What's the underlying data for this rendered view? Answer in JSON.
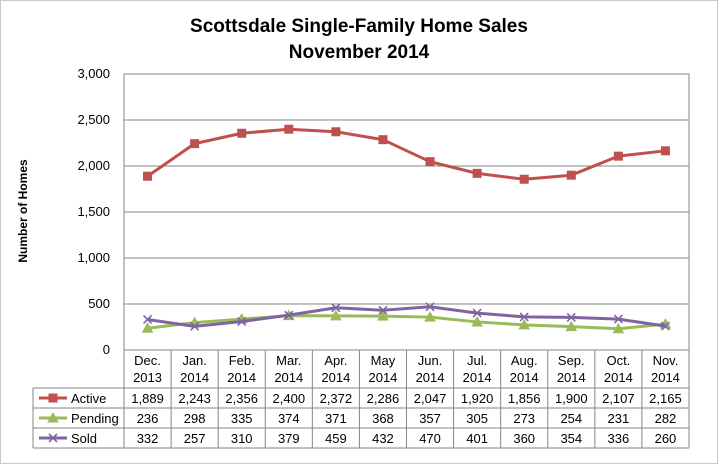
{
  "chart_data": {
    "type": "line",
    "title": "Scottsdale Single-Family Home Sales",
    "subtitle": "November 2014",
    "ylabel": "Number of Homes",
    "xlabel": "",
    "ylim": [
      0,
      3000
    ],
    "yticks": [
      "0",
      "500",
      "1,000",
      "1,500",
      "2,000",
      "2,500",
      "3,000"
    ],
    "ytick_values": [
      0,
      500,
      1000,
      1500,
      2000,
      2500,
      3000
    ],
    "grid": true,
    "legend_placement": "data-table-left",
    "categories": [
      [
        "Dec.",
        "2013"
      ],
      [
        "Jan.",
        "2014"
      ],
      [
        "Feb.",
        "2014"
      ],
      [
        "Mar.",
        "2014"
      ],
      [
        "Apr.",
        "2014"
      ],
      [
        "May",
        "2014"
      ],
      [
        "Jun.",
        "2014"
      ],
      [
        "Jul.",
        "2014"
      ],
      [
        "Aug.",
        "2014"
      ],
      [
        "Sep.",
        "2014"
      ],
      [
        "Oct.",
        "2014"
      ],
      [
        "Nov.",
        "2014"
      ]
    ],
    "series": [
      {
        "name": "Active",
        "color": "#c0504d",
        "marker": "square",
        "values": [
          1889,
          2243,
          2356,
          2400,
          2372,
          2286,
          2047,
          1920,
          1856,
          1900,
          2107,
          2165
        ],
        "labels": [
          "1,889",
          "2,243",
          "2,356",
          "2,400",
          "2,372",
          "2,286",
          "2,047",
          "1,920",
          "1,856",
          "1,900",
          "2,107",
          "2,165"
        ]
      },
      {
        "name": "Pending",
        "color": "#9bbb59",
        "marker": "triangle",
        "values": [
          236,
          298,
          335,
          374,
          371,
          368,
          357,
          305,
          273,
          254,
          231,
          282
        ],
        "labels": [
          "236",
          "298",
          "335",
          "374",
          "371",
          "368",
          "357",
          "305",
          "273",
          "254",
          "231",
          "282"
        ]
      },
      {
        "name": "Sold",
        "color": "#8064a2",
        "marker": "x",
        "values": [
          332,
          257,
          310,
          379,
          459,
          432,
          470,
          401,
          360,
          354,
          336,
          260
        ],
        "labels": [
          "332",
          "257",
          "310",
          "379",
          "459",
          "432",
          "470",
          "401",
          "360",
          "354",
          "336",
          "260"
        ]
      }
    ]
  }
}
